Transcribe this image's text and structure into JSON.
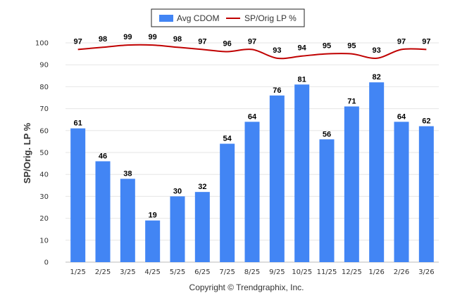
{
  "chart_data": {
    "type": "bar",
    "categories": [
      "1/25",
      "2/25",
      "3/25",
      "4/25",
      "5/25",
      "6/25",
      "7/25",
      "8/25",
      "9/25",
      "10/25",
      "11/25",
      "12/25",
      "1/26",
      "2/26",
      "3/26"
    ],
    "series": [
      {
        "name": "Avg CDOM",
        "type": "bar",
        "color": "#4285f4",
        "values": [
          61,
          46,
          38,
          19,
          30,
          32,
          54,
          64,
          76,
          81,
          56,
          71,
          82,
          64,
          62
        ]
      },
      {
        "name": "SP/Orig LP %",
        "type": "line",
        "color": "#c00000",
        "values": [
          97,
          98,
          99,
          99,
          98,
          97,
          96,
          97,
          93,
          94,
          95,
          95,
          93,
          97,
          97
        ]
      }
    ],
    "ylabel": "SP/Orig. LP %",
    "ylim": [
      0,
      100
    ],
    "yticks": [
      0,
      10,
      20,
      30,
      40,
      50,
      60,
      70,
      80,
      90,
      100
    ],
    "grid": true,
    "legend": "top-center"
  },
  "footer": "Copyright © Trendgraphix, Inc."
}
